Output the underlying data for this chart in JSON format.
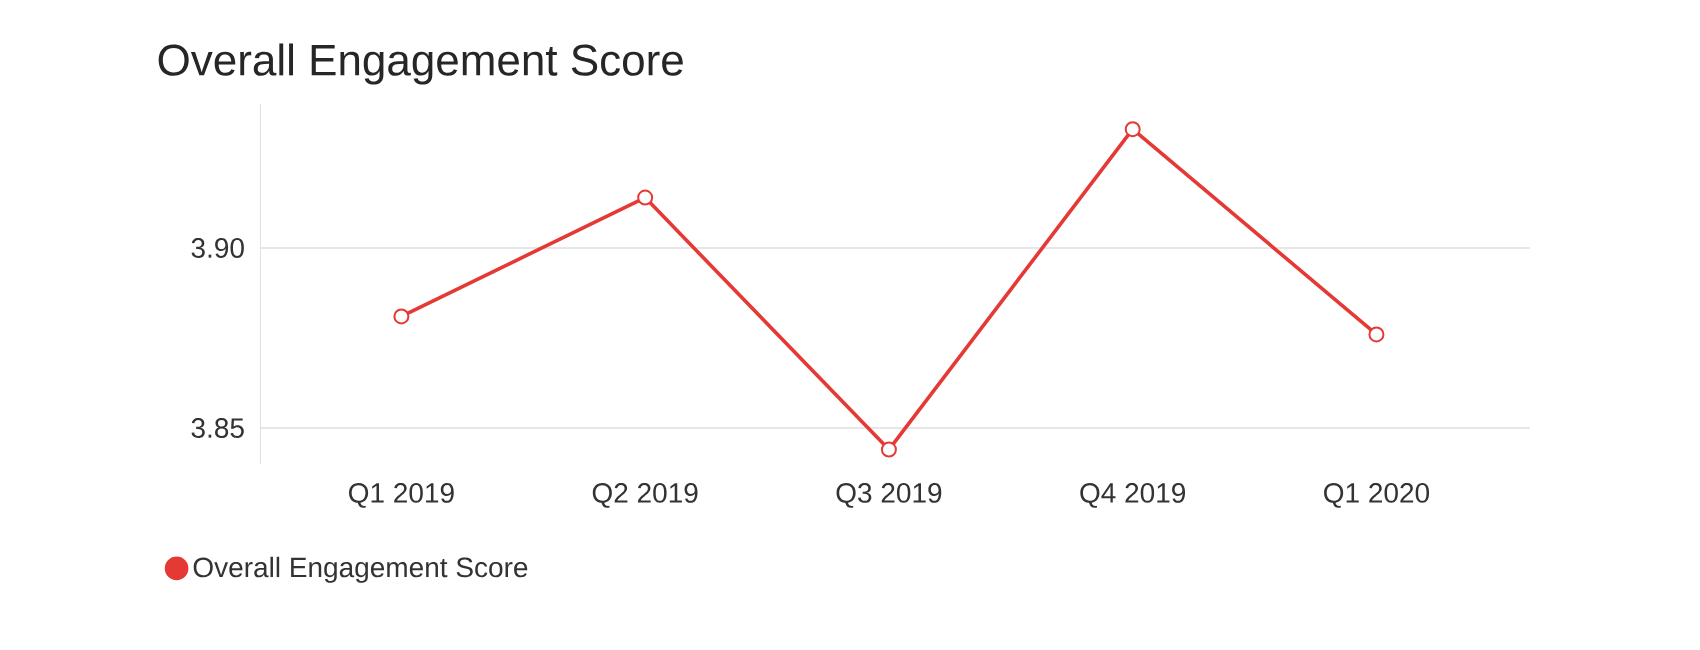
{
  "chart_data": {
    "type": "line",
    "title": "Overall Engagement Score",
    "categories": [
      "Q1 2019",
      "Q2 2019",
      "Q3 2019",
      "Q4 2019",
      "Q1 2020"
    ],
    "series": [
      {
        "name": "Overall Engagement Score",
        "color": "#e53935",
        "values": [
          3.881,
          3.914,
          3.844,
          3.933,
          3.876
        ]
      }
    ],
    "ylim": [
      3.84,
      3.94
    ],
    "yticks": [
      {
        "value": 3.85,
        "label": "3.85"
      },
      {
        "value": 3.9,
        "label": "3.90"
      }
    ],
    "grid": "y",
    "legend": "bottom left",
    "marker": "circle",
    "line_style": "solid"
  }
}
